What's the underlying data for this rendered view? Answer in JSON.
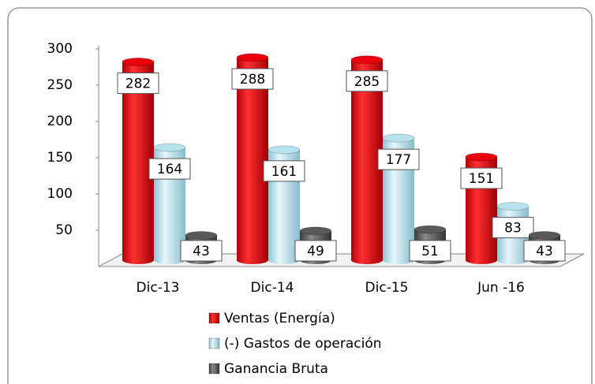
{
  "chart_data": {
    "type": "bar",
    "categories": [
      "Dic-13",
      "Dic-14",
      "Dic-15",
      "Jun -16"
    ],
    "series": [
      {
        "name": "Ventas (Energía)",
        "color": "#e8000b",
        "values": [
          282,
          288,
          285,
          151
        ]
      },
      {
        "name": "(-) Gastos de operación",
        "color": "#b7e3ef",
        "values": [
          164,
          161,
          177,
          83
        ]
      },
      {
        "name": "Ganancia Bruta",
        "color": "#595959",
        "values": [
          43,
          49,
          51,
          43
        ]
      }
    ],
    "ylim": [
      0,
      300
    ],
    "yticks": [
      50,
      100,
      150,
      200,
      250,
      300
    ],
    "grid": false,
    "legend": "bottom"
  }
}
